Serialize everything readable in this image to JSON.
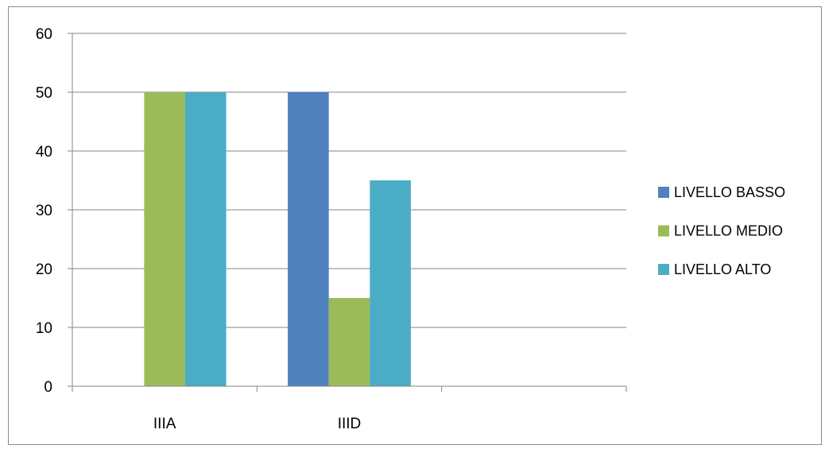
{
  "chart_data": {
    "type": "bar",
    "categories": [
      "IIIA",
      "IIID",
      ""
    ],
    "series": [
      {
        "name": "LIVELLO BASSO",
        "values": [
          0,
          50,
          null
        ],
        "color": "#4f81bd"
      },
      {
        "name": "LIVELLO MEDIO",
        "values": [
          50,
          15,
          null
        ],
        "color": "#9bbb59"
      },
      {
        "name": "LIVELLO ALTO",
        "values": [
          50,
          35,
          null
        ],
        "color": "#4bacc6"
      }
    ],
    "ylim": [
      0,
      60
    ],
    "yticks": [
      0,
      10,
      20,
      30,
      40,
      50,
      60
    ],
    "grid": true,
    "legend_position": "right",
    "gridline_color": "#868686"
  }
}
